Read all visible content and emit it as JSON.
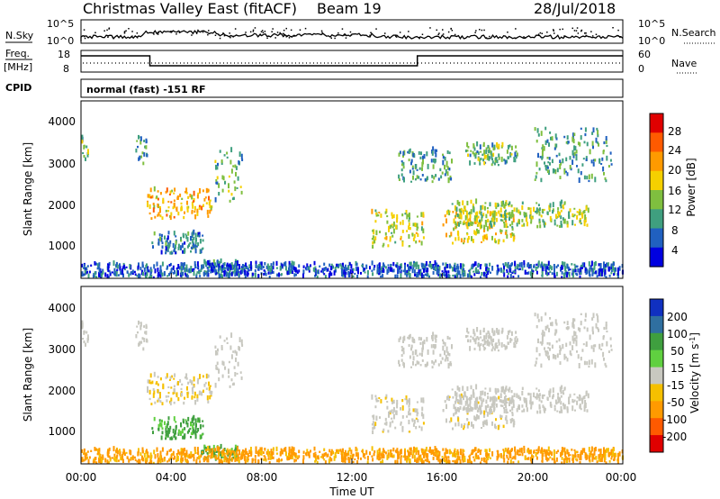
{
  "header": {
    "station": "Christmas Valley East (fitACF)",
    "beam": "Beam 19",
    "date": "28/Jul/2018"
  },
  "panels": {
    "nsky_label": "N.Sky",
    "nsky_ticks": [
      "10^5",
      "10^0"
    ],
    "nsearch_label": "N.Search",
    "nsearch_ticks": [
      "10^5",
      "10^0"
    ],
    "freq_label_1": "Freq.",
    "freq_label_2": "[MHz]",
    "freq_ticks": [
      "18",
      "8"
    ],
    "nave_label": "Nave",
    "nave_ticks": [
      "60",
      "0"
    ],
    "cpid_label": "CPID",
    "cpid_text": "normal (fast) -151 RF"
  },
  "axes": {
    "xlabel": "Time UT",
    "x_ticks": [
      "00:00",
      "04:00",
      "08:00",
      "12:00",
      "16:00",
      "20:00",
      "00:00"
    ],
    "ylabel": "Slant Range [km]",
    "y_ticks": [
      "4000",
      "3000",
      "2000",
      "1000"
    ]
  },
  "power_scale": {
    "label": "Power [dB]",
    "ticks": [
      "28",
      "24",
      "20",
      "16",
      "12",
      "8",
      "4"
    ],
    "colors": [
      "#e00000",
      "#ff5a00",
      "#ff9a00",
      "#f5d000",
      "#7fbf3f",
      "#3f9f7f",
      "#2060c0",
      "#0000e0"
    ]
  },
  "velocity_scale": {
    "label": "Velocity [m s^-1]",
    "ticks": [
      "200",
      "100",
      "50",
      "15",
      "-15",
      "-50",
      "-100",
      "-200"
    ],
    "colors": [
      "#1030c0",
      "#2f6fa0",
      "#3f9f3f",
      "#60d040",
      "#c8c8c0",
      "#f5c000",
      "#ff9a00",
      "#ff5a00",
      "#e00000"
    ]
  },
  "chart_data": {
    "type": "heatmap",
    "x_range_hours": [
      0,
      24
    ],
    "y_range_km": [
      180,
      4500
    ],
    "regions": [
      {
        "t": [
          0.0,
          0.3
        ],
        "r": [
          3000,
          3600
        ],
        "power": 14,
        "vel": 0
      },
      {
        "t": [
          2.4,
          2.9
        ],
        "r": [
          2800,
          3800
        ],
        "power": 12,
        "vel": 0
      },
      {
        "t": [
          2.9,
          5.8
        ],
        "r": [
          1600,
          2300
        ],
        "power": 22,
        "vel": -15
      },
      {
        "t": [
          3.0,
          5.4
        ],
        "r": [
          750,
          1250
        ],
        "power": 10,
        "vel": 40
      },
      {
        "t": [
          5.9,
          7.1
        ],
        "r": [
          2000,
          3300
        ],
        "power": 14,
        "vel": 0
      },
      {
        "t": [
          5.3,
          6.9
        ],
        "r": [
          250,
          550
        ],
        "power": 10,
        "vel": 40
      },
      {
        "t": [
          12.8,
          15.2
        ],
        "r": [
          900,
          1800
        ],
        "power": 18,
        "vel": -5
      },
      {
        "t": [
          14.0,
          16.4
        ],
        "r": [
          2500,
          3300
        ],
        "power": 12,
        "vel": 0
      },
      {
        "t": [
          16.0,
          19.2
        ],
        "r": [
          1000,
          1800
        ],
        "power": 20,
        "vel": -5
      },
      {
        "t": [
          16.4,
          22.5
        ],
        "r": [
          1400,
          2000
        ],
        "power": 16,
        "vel": 0
      },
      {
        "t": [
          17.0,
          19.3
        ],
        "r": [
          2900,
          3400
        ],
        "power": 14,
        "vel": 0
      },
      {
        "t": [
          20.0,
          23.5
        ],
        "r": [
          2500,
          3800
        ],
        "power": 12,
        "vel": 0
      },
      {
        "t": [
          0.0,
          24.0
        ],
        "r": [
          180,
          500
        ],
        "power": 8,
        "vel": -40
      }
    ]
  }
}
